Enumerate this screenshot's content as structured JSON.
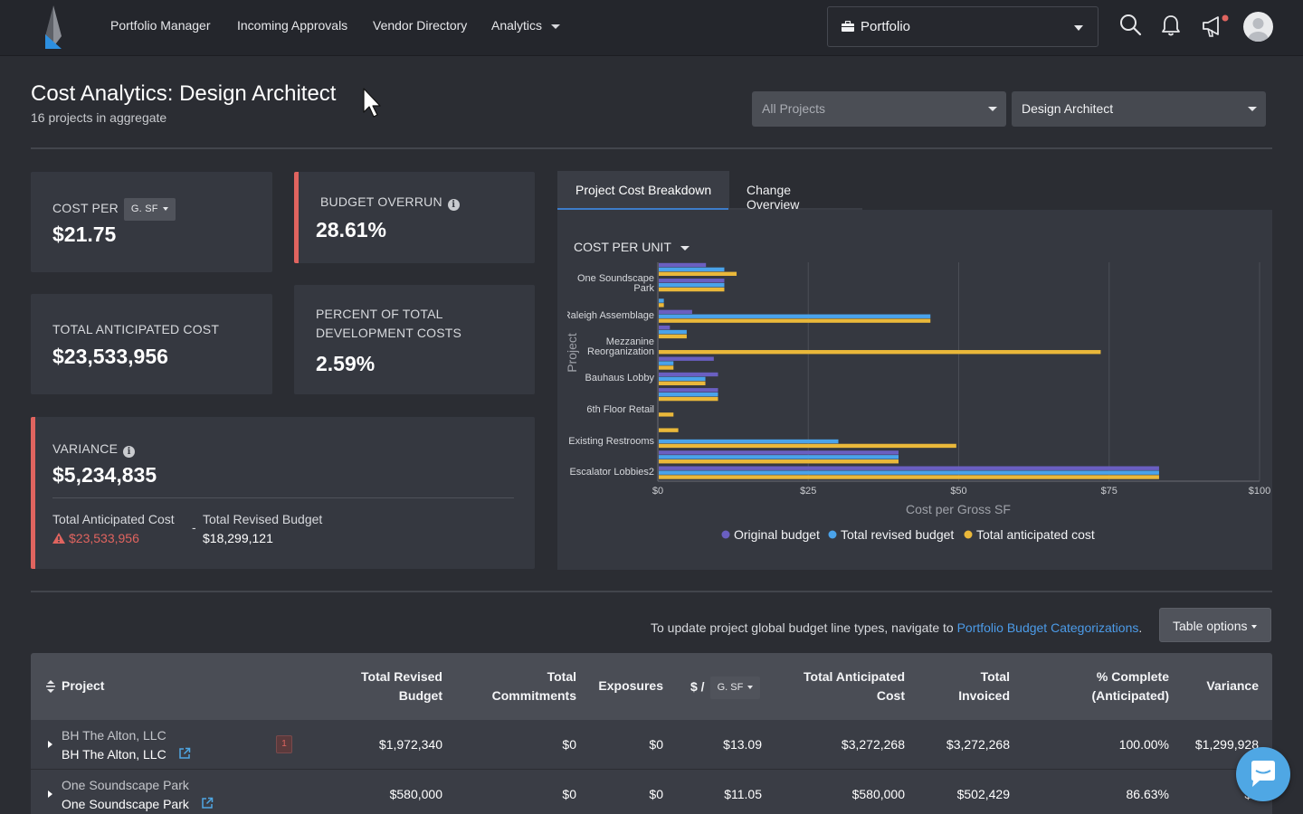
{
  "nav": {
    "links": [
      "Portfolio Manager",
      "Incoming Approvals",
      "Vendor Directory",
      "Analytics"
    ],
    "portfolio_label": "Portfolio"
  },
  "header": {
    "title": "Cost Analytics: Design Architect",
    "subtitle": "16 projects in aggregate",
    "projects_filter": "All Projects",
    "role_filter": "Design Architect"
  },
  "kpis": {
    "cost_per_label": "COST PER",
    "cost_per_unit": "G. SF",
    "cost_per_value": "$21.75",
    "overrun_label": "BUDGET OVERRUN",
    "overrun_value": "28.61%",
    "anticipated_label": "TOTAL ANTICIPATED COST",
    "anticipated_value": "$23,533,956",
    "percent_label_1": "PERCENT OF TOTAL",
    "percent_label_2": "DEVELOPMENT COSTS",
    "percent_value": "2.59%",
    "variance_label": "VARIANCE",
    "variance_value": "$5,234,835",
    "variance_anticipated_label": "Total Anticipated Cost",
    "variance_anticipated_value": "$23,533,956",
    "variance_separator": "-",
    "variance_budget_label": "Total Revised Budget",
    "variance_budget_value": "$18,299,121"
  },
  "tabs": [
    "Project Cost Breakdown",
    "Change Overview"
  ],
  "colors": {
    "original": "#6a5fc1",
    "revised": "#4aa3ea",
    "anticipated": "#eab83a",
    "accent_red": "#e0645f"
  },
  "chart_data": {
    "type": "bar",
    "orientation": "horizontal",
    "selector_label": "COST PER UNIT",
    "xlabel": "Cost per Gross SF",
    "ylabel": "Project",
    "xlim": [
      0,
      100
    ],
    "x_ticks": [
      "$0",
      "$25",
      "$50",
      "$75",
      "$100"
    ],
    "x_tick_values": [
      0,
      25,
      50,
      75,
      100
    ],
    "y_tick_labels": [
      "One Soundscape Park",
      "Raleigh Assemblage",
      "Mezzanine Reorganization",
      "Bauhaus Lobby",
      "6th Floor Retail",
      "Existing Restrooms",
      "Escalator Lobbies2"
    ],
    "groups": [
      {
        "original": 8.0,
        "revised": 11.05,
        "anticipated": 13.09
      },
      {
        "original": 11.05,
        "revised": 11.05,
        "anticipated": 11.05
      },
      {
        "original": 0,
        "revised": 1.0,
        "anticipated": 1.0
      },
      {
        "original": 5.7,
        "revised": 45.3,
        "anticipated": 45.3
      },
      {
        "original": 2.0,
        "revised": 4.8,
        "anticipated": 4.8
      },
      {
        "original": 0,
        "revised": 0,
        "anticipated": 73.6
      },
      {
        "original": 9.3,
        "revised": 2.6,
        "anticipated": 2.6
      },
      {
        "original": 10.0,
        "revised": 7.9,
        "anticipated": 7.9
      },
      {
        "original": 10.0,
        "revised": 10.0,
        "anticipated": 10.0
      },
      {
        "original": 0,
        "revised": 0,
        "anticipated": 2.6
      },
      {
        "original": 0,
        "revised": 0,
        "anticipated": 3.4
      },
      {
        "original": 0,
        "revised": 30.0,
        "anticipated": 49.6
      },
      {
        "original": 40.0,
        "revised": 40.0,
        "anticipated": 40.0
      },
      {
        "original": 83.3,
        "revised": 83.3,
        "anticipated": 83.3
      }
    ],
    "series": [
      {
        "name": "Original budget",
        "key": "original"
      },
      {
        "name": "Total revised budget",
        "key": "revised"
      },
      {
        "name": "Total anticipated cost",
        "key": "anticipated"
      }
    ]
  },
  "table": {
    "notice": "To update project global budget line types, navigate to ",
    "notice_link": "Portfolio Budget Categorizations",
    "notice_end": ".",
    "options_label": "Table options",
    "headers": {
      "project": "Project",
      "revised_1": "Total Revised",
      "revised_2": "Budget",
      "commit_1": "Total",
      "commit_2": "Commitments",
      "exposures": "Exposures",
      "unit_prefix": "$ /",
      "unit": "G. SF",
      "anticipated_1": "Total Anticipated",
      "anticipated_2": "Cost",
      "invoiced_1": "Total",
      "invoiced_2": "Invoiced",
      "complete_1": "% Complete",
      "complete_2": "(Anticipated)",
      "variance": "Variance"
    },
    "rows": [
      {
        "top": "BH The Alton, LLC",
        "name": "BH The Alton, LLC",
        "badge": "1",
        "revised": "$1,972,340",
        "commitments": "$0",
        "exposures": "$0",
        "unit": "$13.09",
        "anticipated": "$3,272,268",
        "invoiced": "$3,272,268",
        "complete": "100.00%",
        "variance": "$1,299,928"
      },
      {
        "top": "One Soundscape Park",
        "name": "One Soundscape Park",
        "badge": "",
        "revised": "$580,000",
        "commitments": "$0",
        "exposures": "$0",
        "unit": "$11.05",
        "anticipated": "$580,000",
        "invoiced": "$502,429",
        "complete": "86.63%",
        "variance": "$0"
      }
    ]
  }
}
